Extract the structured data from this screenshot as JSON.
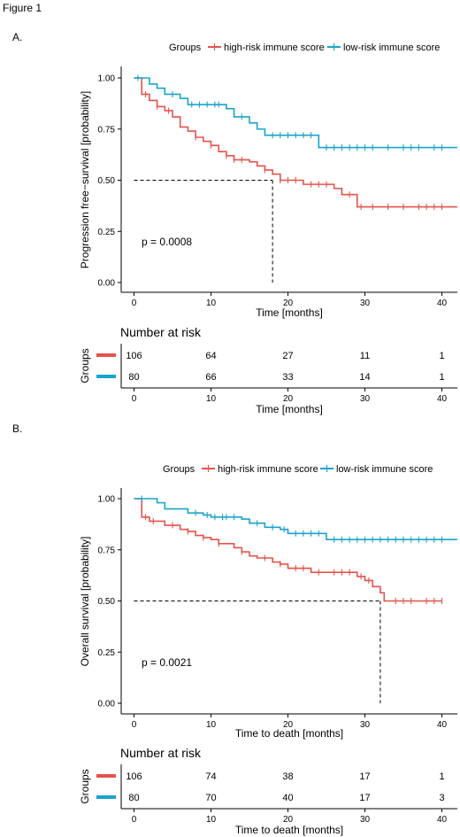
{
  "figure_label": "Figure 1",
  "chart_data": [
    {
      "type": "line",
      "subtype": "kaplan-meier",
      "panel_label": "A.",
      "legend": {
        "title": "Groups",
        "placement": "top"
      },
      "xlabel": "Time [months]",
      "ylabel": "Progression free−survival [probability]",
      "xlim": [
        0,
        42
      ],
      "ylim": [
        0,
        1
      ],
      "x_ticks": [
        "0",
        "10",
        "20",
        "30",
        "40"
      ],
      "y_ticks": [
        "0.00",
        "0.25",
        "0.50",
        "0.75",
        "1.00"
      ],
      "grid": false,
      "pvalue": "p = 0.0008",
      "median_survival": {
        "x": 18,
        "y": 0.5
      },
      "series": [
        {
          "name": "high-risk immune score",
          "color": "#e5534b",
          "steps": [
            [
              0,
              1.0
            ],
            [
              1,
              0.92
            ],
            [
              2,
              0.89
            ],
            [
              3,
              0.86
            ],
            [
              4,
              0.84
            ],
            [
              5,
              0.81
            ],
            [
              6,
              0.76
            ],
            [
              7,
              0.74
            ],
            [
              8,
              0.71
            ],
            [
              9,
              0.69
            ],
            [
              10,
              0.67
            ],
            [
              11,
              0.64
            ],
            [
              12,
              0.62
            ],
            [
              13,
              0.6
            ],
            [
              15,
              0.59
            ],
            [
              16,
              0.57
            ],
            [
              17,
              0.55
            ],
            [
              18,
              0.53
            ],
            [
              19,
              0.5
            ],
            [
              22,
              0.48
            ],
            [
              26,
              0.46
            ],
            [
              27,
              0.43
            ],
            [
              29,
              0.37
            ],
            [
              42,
              0.37
            ]
          ],
          "censor_times": [
            1.5,
            3,
            4.5,
            8,
            10,
            12,
            13,
            14,
            17,
            19,
            20,
            21,
            23,
            24,
            25,
            28,
            29.5,
            31,
            33,
            35,
            37,
            38,
            39,
            40
          ],
          "end_time": 40
        },
        {
          "name": "low-risk immune score",
          "color": "#1aa3cc",
          "steps": [
            [
              0,
              1.0
            ],
            [
              2,
              0.97
            ],
            [
              3,
              0.95
            ],
            [
              4,
              0.92
            ],
            [
              6,
              0.9
            ],
            [
              7,
              0.87
            ],
            [
              12,
              0.85
            ],
            [
              13,
              0.81
            ],
            [
              15,
              0.78
            ],
            [
              16,
              0.75
            ],
            [
              17,
              0.72
            ],
            [
              24,
              0.66
            ],
            [
              42,
              0.66
            ]
          ],
          "censor_times": [
            0.5,
            5,
            7.5,
            8.5,
            9.5,
            10.5,
            11,
            14,
            18,
            19,
            20,
            21,
            22,
            23,
            25,
            26,
            27,
            28,
            29,
            30,
            31,
            33,
            35,
            36,
            37,
            39,
            40
          ],
          "end_time": 42
        }
      ],
      "risk_table": {
        "title": "Number at risk",
        "ylabel": "Groups",
        "xlabel": "Time [months]",
        "times": [
          0,
          10,
          20,
          30,
          40
        ],
        "rows": [
          {
            "group": "high-risk immune score",
            "values": [
              "106",
              "64",
              "27",
              "11",
              "1"
            ]
          },
          {
            "group": "low-risk immune score",
            "values": [
              "80",
              "66",
              "33",
              "14",
              "1"
            ]
          }
        ]
      }
    },
    {
      "type": "line",
      "subtype": "kaplan-meier",
      "panel_label": "B.",
      "legend": {
        "title": "Groups",
        "placement": "top"
      },
      "xlabel": "Time to death [months]",
      "ylabel": "Overall survival [probability]",
      "xlim": [
        0,
        42
      ],
      "ylim": [
        0,
        1
      ],
      "x_ticks": [
        "0",
        "10",
        "20",
        "30",
        "40"
      ],
      "y_ticks": [
        "0.00",
        "0.25",
        "0.50",
        "0.75",
        "1.00"
      ],
      "grid": false,
      "pvalue": "p = 0.0021",
      "median_survival": {
        "x": 32,
        "y": 0.5
      },
      "series": [
        {
          "name": "high-risk immune score",
          "color": "#e5534b",
          "steps": [
            [
              0,
              1.0
            ],
            [
              1,
              0.91
            ],
            [
              2,
              0.89
            ],
            [
              4,
              0.87
            ],
            [
              6,
              0.85
            ],
            [
              7,
              0.84
            ],
            [
              8,
              0.82
            ],
            [
              9,
              0.81
            ],
            [
              10,
              0.8
            ],
            [
              11,
              0.78
            ],
            [
              13,
              0.76
            ],
            [
              14,
              0.74
            ],
            [
              15,
              0.72
            ],
            [
              16,
              0.71
            ],
            [
              18,
              0.69
            ],
            [
              19,
              0.68
            ],
            [
              20,
              0.66
            ],
            [
              23,
              0.64
            ],
            [
              29,
              0.62
            ],
            [
              30,
              0.6
            ],
            [
              31,
              0.57
            ],
            [
              32,
              0.54
            ],
            [
              32.5,
              0.5
            ],
            [
              40,
              0.5
            ]
          ],
          "censor_times": [
            1.5,
            2.5,
            5,
            7,
            9,
            11,
            14,
            17,
            19,
            21,
            22,
            24,
            26,
            27,
            28,
            29.5,
            30.5,
            34,
            35,
            36,
            38,
            39,
            40
          ],
          "end_time": 40
        },
        {
          "name": "low-risk immune score",
          "color": "#1aa3cc",
          "steps": [
            [
              0,
              1.0
            ],
            [
              3,
              0.98
            ],
            [
              4,
              0.95
            ],
            [
              7,
              0.93
            ],
            [
              9,
              0.92
            ],
            [
              10,
              0.91
            ],
            [
              14,
              0.9
            ],
            [
              15,
              0.88
            ],
            [
              17,
              0.86
            ],
            [
              19,
              0.85
            ],
            [
              20,
              0.83
            ],
            [
              25,
              0.8
            ],
            [
              42,
              0.8
            ]
          ],
          "censor_times": [
            1,
            8,
            9.5,
            10.5,
            11.5,
            12,
            13,
            16,
            18,
            19.5,
            21,
            22,
            23,
            24,
            26,
            27,
            28,
            29,
            30,
            31,
            32,
            33,
            34,
            35,
            36,
            37,
            38,
            39,
            40
          ],
          "end_time": 42
        }
      ],
      "risk_table": {
        "title": "Number at risk",
        "ylabel": "Groups",
        "xlabel": "Time to death [months]",
        "times": [
          0,
          10,
          20,
          30,
          40
        ],
        "rows": [
          {
            "group": "high-risk immune score",
            "values": [
              "106",
              "74",
              "38",
              "17",
              "1"
            ]
          },
          {
            "group": "low-risk immune score",
            "values": [
              "80",
              "70",
              "40",
              "17",
              "3"
            ]
          }
        ]
      }
    }
  ]
}
